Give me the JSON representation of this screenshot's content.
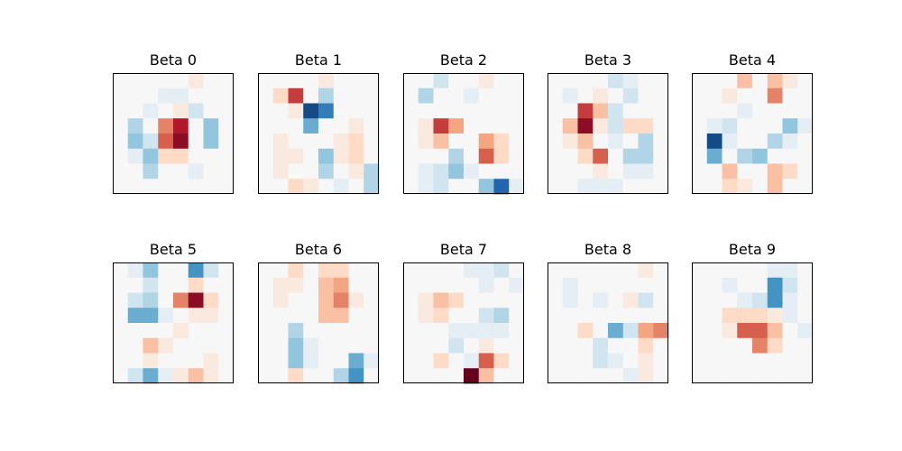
{
  "chart_data": [
    {
      "type": "heatmap",
      "title": "Beta 0",
      "grid": false,
      "values": [
        [
          0,
          0,
          0,
          0,
          0,
          1,
          0,
          0
        ],
        [
          0,
          0,
          0,
          -1,
          -1,
          0,
          0,
          0
        ],
        [
          0,
          0,
          -1,
          0,
          1,
          -2,
          0,
          0
        ],
        [
          0,
          -3,
          0,
          5,
          8,
          0,
          -4,
          0
        ],
        [
          0,
          -4,
          -2,
          6,
          9,
          0,
          -4,
          0
        ],
        [
          0,
          -1,
          -4,
          2,
          2,
          0,
          0,
          0
        ],
        [
          0,
          0,
          -3,
          0,
          0,
          -1,
          0,
          0
        ],
        [
          0,
          0,
          0,
          0,
          0,
          0,
          0,
          0
        ]
      ]
    },
    {
      "type": "heatmap",
      "title": "Beta 1",
      "grid": false,
      "values": [
        [
          0,
          0,
          0,
          0,
          1,
          0,
          0,
          0
        ],
        [
          0,
          2,
          7,
          0,
          -3,
          0,
          0,
          0
        ],
        [
          0,
          0,
          1,
          -9,
          -7,
          0,
          0,
          0
        ],
        [
          0,
          0,
          0,
          -5,
          0,
          0,
          1,
          0
        ],
        [
          0,
          1,
          0,
          0,
          0,
          1,
          2,
          0
        ],
        [
          0,
          1,
          1,
          0,
          -4,
          1,
          2,
          0
        ],
        [
          0,
          1,
          0,
          0,
          -3,
          0,
          1,
          -3
        ],
        [
          0,
          0,
          2,
          1,
          0,
          -1,
          0,
          -3
        ]
      ]
    },
    {
      "type": "heatmap",
      "title": "Beta 2",
      "grid": false,
      "values": [
        [
          0,
          0,
          -2,
          0,
          0,
          1,
          0,
          0
        ],
        [
          0,
          -3,
          0,
          0,
          -1,
          0,
          0,
          0
        ],
        [
          0,
          0,
          0,
          0,
          0,
          0,
          0,
          0
        ],
        [
          0,
          1,
          7,
          4,
          0,
          0,
          0,
          0
        ],
        [
          0,
          1,
          3,
          0,
          0,
          4,
          2,
          0
        ],
        [
          0,
          0,
          0,
          -3,
          0,
          6,
          2,
          0
        ],
        [
          0,
          -1,
          -2,
          -4,
          -1,
          0,
          0,
          0
        ],
        [
          0,
          -1,
          -2,
          0,
          0,
          -4,
          -8,
          -1
        ]
      ]
    },
    {
      "type": "heatmap",
      "title": "Beta 3",
      "grid": false,
      "values": [
        [
          0,
          0,
          0,
          0,
          -2,
          -1,
          0,
          0
        ],
        [
          0,
          -1,
          0,
          1,
          0,
          -2,
          0,
          0
        ],
        [
          0,
          0,
          7,
          3,
          -2,
          0,
          0,
          0
        ],
        [
          0,
          3,
          9,
          1,
          -2,
          2,
          2,
          0
        ],
        [
          0,
          1,
          3,
          0,
          -1,
          0,
          -3,
          0
        ],
        [
          0,
          0,
          2,
          6,
          0,
          -3,
          -3,
          0
        ],
        [
          0,
          0,
          0,
          1,
          0,
          -1,
          -1,
          0
        ],
        [
          0,
          0,
          -1,
          -1,
          -1,
          0,
          0,
          0
        ]
      ]
    },
    {
      "type": "heatmap",
      "title": "Beta 4",
      "grid": false,
      "values": [
        [
          0,
          0,
          0,
          3,
          0,
          3,
          1,
          0
        ],
        [
          0,
          0,
          1,
          0,
          0,
          5,
          0,
          0
        ],
        [
          0,
          0,
          0,
          -1,
          0,
          0,
          0,
          0
        ],
        [
          0,
          -1,
          -2,
          0,
          0,
          0,
          -4,
          -1
        ],
        [
          0,
          -9,
          -1,
          0,
          0,
          -3,
          -1,
          0
        ],
        [
          0,
          -5,
          0,
          -3,
          -4,
          0,
          0,
          0
        ],
        [
          0,
          0,
          3,
          0,
          0,
          3,
          2,
          0
        ],
        [
          0,
          0,
          2,
          1,
          0,
          3,
          0,
          0
        ]
      ]
    },
    {
      "type": "heatmap",
      "title": "Beta 5",
      "grid": false,
      "values": [
        [
          0,
          -1,
          -4,
          0,
          0,
          -6,
          -2,
          0
        ],
        [
          0,
          0,
          -2,
          0,
          0,
          2,
          0,
          0
        ],
        [
          0,
          -2,
          -3,
          0,
          5,
          9,
          2,
          0
        ],
        [
          0,
          -5,
          -5,
          -1,
          0,
          1,
          1,
          0
        ],
        [
          0,
          0,
          0,
          0,
          1,
          0,
          0,
          0
        ],
        [
          0,
          0,
          3,
          1,
          0,
          0,
          0,
          0
        ],
        [
          0,
          0,
          1,
          0,
          0,
          0,
          1,
          0
        ],
        [
          0,
          -2,
          -5,
          -1,
          1,
          3,
          1,
          0
        ]
      ]
    },
    {
      "type": "heatmap",
      "title": "Beta 6",
      "grid": false,
      "values": [
        [
          0,
          0,
          2,
          0,
          2,
          2,
          0,
          0
        ],
        [
          0,
          1,
          1,
          0,
          3,
          4,
          0,
          0
        ],
        [
          0,
          1,
          0,
          0,
          3,
          5,
          1,
          0
        ],
        [
          0,
          0,
          0,
          0,
          3,
          3,
          0,
          0
        ],
        [
          0,
          0,
          -3,
          0,
          0,
          0,
          0,
          0
        ],
        [
          0,
          0,
          -4,
          -1,
          0,
          0,
          0,
          0
        ],
        [
          0,
          0,
          -4,
          -1,
          0,
          0,
          -5,
          -1
        ],
        [
          0,
          0,
          2,
          0,
          0,
          -3,
          -6,
          0
        ]
      ]
    },
    {
      "type": "heatmap",
      "title": "Beta 7",
      "grid": false,
      "values": [
        [
          0,
          0,
          0,
          0,
          -1,
          -1,
          -2,
          0
        ],
        [
          0,
          0,
          0,
          0,
          0,
          -1,
          0,
          -1
        ],
        [
          0,
          1,
          3,
          2,
          0,
          0,
          0,
          0
        ],
        [
          0,
          1,
          2,
          0,
          0,
          -2,
          -3,
          0
        ],
        [
          0,
          0,
          0,
          -1,
          -1,
          -1,
          -1,
          0
        ],
        [
          0,
          0,
          0,
          -2,
          0,
          1,
          0,
          0
        ],
        [
          0,
          0,
          2,
          0,
          -1,
          6,
          2,
          0
        ],
        [
          0,
          0,
          0,
          0,
          10,
          3,
          0,
          0
        ]
      ]
    },
    {
      "type": "heatmap",
      "title": "Beta 8",
      "grid": false,
      "values": [
        [
          0,
          0,
          0,
          0,
          0,
          0,
          1,
          0
        ],
        [
          0,
          -1,
          0,
          0,
          0,
          0,
          0,
          0
        ],
        [
          0,
          -1,
          0,
          -1,
          0,
          1,
          -2,
          0
        ],
        [
          0,
          0,
          0,
          0,
          0,
          0,
          0,
          0
        ],
        [
          0,
          0,
          2,
          0,
          -5,
          -2,
          4,
          5
        ],
        [
          0,
          0,
          0,
          -2,
          0,
          0,
          2,
          0
        ],
        [
          0,
          0,
          0,
          -2,
          -1,
          0,
          1,
          0
        ],
        [
          0,
          0,
          0,
          0,
          0,
          -1,
          1,
          0
        ]
      ]
    },
    {
      "type": "heatmap",
      "title": "Beta 9",
      "grid": false,
      "values": [
        [
          0,
          0,
          0,
          0,
          0,
          -1,
          -1,
          0
        ],
        [
          0,
          0,
          -1,
          0,
          0,
          -6,
          -2,
          0
        ],
        [
          0,
          0,
          0,
          -1,
          -2,
          -6,
          -1,
          0
        ],
        [
          0,
          0,
          2,
          2,
          2,
          1,
          -1,
          0
        ],
        [
          0,
          0,
          1,
          6,
          6,
          3,
          0,
          -1
        ],
        [
          0,
          0,
          0,
          0,
          5,
          2,
          0,
          0
        ],
        [
          0,
          0,
          0,
          0,
          0,
          0,
          0,
          0
        ],
        [
          0,
          0,
          0,
          0,
          0,
          0,
          0,
          0
        ]
      ]
    }
  ],
  "colors": {
    "colormap": "RdBu_r",
    "negative_max": "#053061",
    "neutral": "#f7f7f7",
    "positive_max": "#67001f",
    "frame": "#000000"
  },
  "scale": {
    "vmin": -10,
    "vmax": 10
  }
}
